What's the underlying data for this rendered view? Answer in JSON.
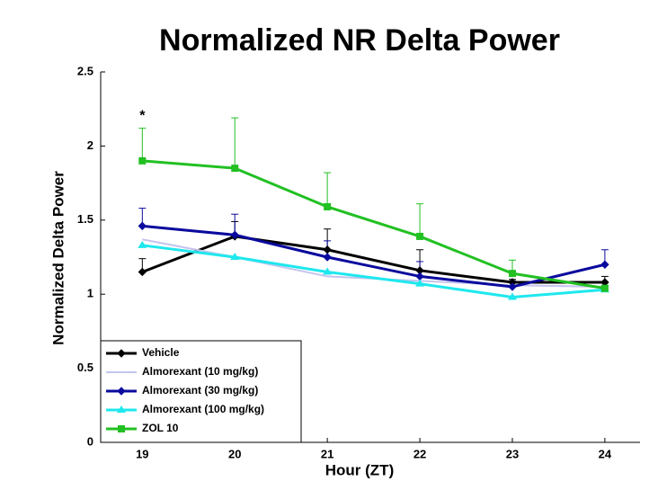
{
  "chart_data": {
    "type": "line",
    "title": "Normalized NR Delta Power",
    "xlabel": "Hour (ZT)",
    "ylabel": "Normalized Delta Power",
    "x": [
      19,
      20,
      21,
      22,
      23,
      24
    ],
    "xlim": [
      18.55,
      24.38
    ],
    "xticks": [
      19,
      20,
      21,
      22,
      23,
      24
    ],
    "ylim": [
      0,
      2.5
    ],
    "yticks": [
      0,
      0.5,
      1,
      1.5,
      2,
      2.5
    ],
    "grid": false,
    "legend": "lower left",
    "annotations": [
      {
        "text": "*",
        "x": 19,
        "y": 2.2
      }
    ],
    "series": [
      {
        "name": "Vehicle",
        "color": "#000000",
        "marker": "diamond",
        "values": [
          1.15,
          1.39,
          1.3,
          1.16,
          1.08,
          1.08
        ],
        "errors": [
          0.09,
          0.1,
          0.14,
          0.14,
          0.02,
          0.04
        ]
      },
      {
        "name": "Almorexant (10 mg/kg)",
        "color": "#c4c4ee",
        "marker": "none",
        "values": [
          1.37,
          1.25,
          1.12,
          1.09,
          1.06,
          1.05
        ]
      },
      {
        "name": "Almorexant (30 mg/kg)",
        "color": "#0a0a9e",
        "marker": "diamond",
        "values": [
          1.46,
          1.4,
          1.25,
          1.12,
          1.05,
          1.2
        ],
        "errors": [
          0.12,
          0.14,
          0.11,
          0.1,
          0.04,
          0.1
        ]
      },
      {
        "name": "Almorexant (100 mg/kg)",
        "color": "#1ee8ee",
        "marker": "triangle",
        "values": [
          1.33,
          1.25,
          1.15,
          1.07,
          0.98,
          1.03
        ]
      },
      {
        "name": "ZOL 10",
        "color": "#22c022",
        "marker": "square",
        "values": [
          1.9,
          1.85,
          1.59,
          1.39,
          1.14,
          1.04
        ],
        "errors": [
          0.22,
          0.34,
          0.23,
          0.22,
          0.09,
          0.02
        ]
      }
    ]
  }
}
